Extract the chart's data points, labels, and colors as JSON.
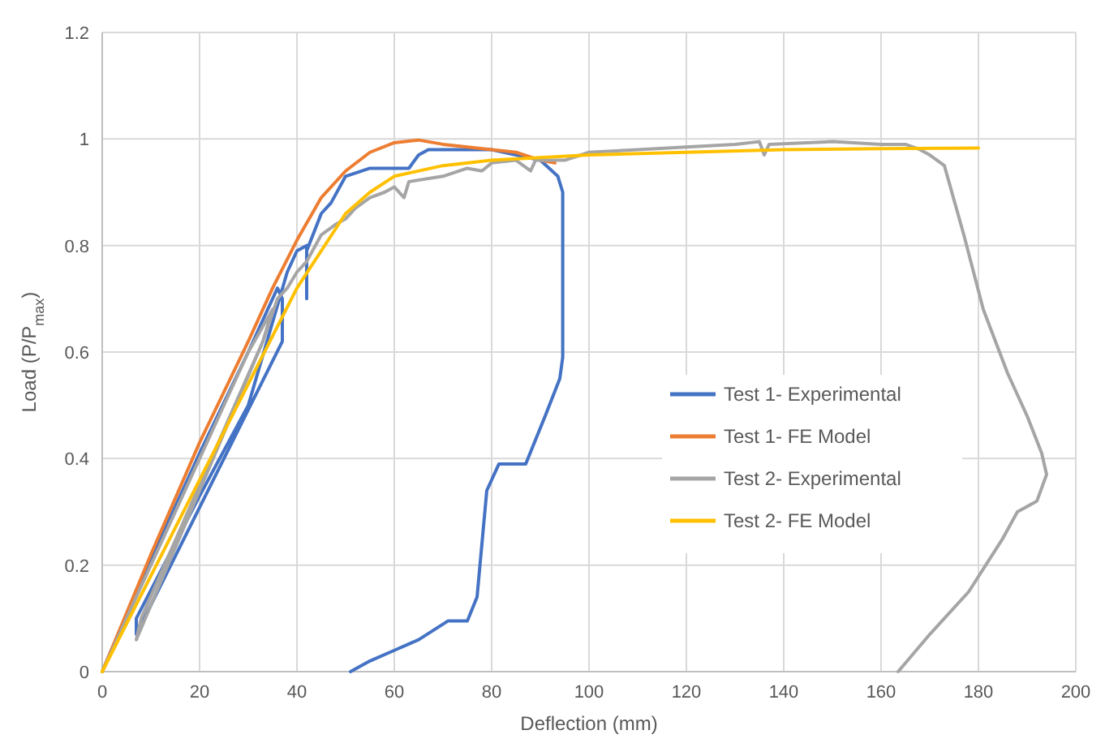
{
  "chart_data": {
    "type": "line",
    "xlabel": "Deflection (mm)",
    "ylabel": "Load (P/P$_{max}$)",
    "xlim": [
      0,
      200
    ],
    "xticks": [
      0,
      20,
      40,
      60,
      80,
      100,
      120,
      140,
      160,
      180,
      200
    ],
    "ylim": [
      0,
      1.2
    ],
    "yticks": [
      0,
      0.2,
      0.4,
      0.6,
      0.8,
      1,
      1.2
    ],
    "grid": true,
    "legend": "right",
    "marker": "none",
    "line_style": "solid",
    "series": [
      {
        "name": "Test 1- Experimental",
        "color": "#4472c4",
        "x": [
          0,
          10,
          20,
          30,
          36,
          37,
          37,
          7,
          7,
          20,
          30,
          38,
          40,
          42,
          42,
          42,
          45,
          47,
          50,
          55,
          63,
          65,
          67,
          80,
          90,
          93.6,
          94.6,
          94.6,
          94,
          91,
          87,
          81.5,
          79,
          77,
          75,
          71,
          65,
          60,
          55,
          51
        ],
        "values": [
          0,
          0.21,
          0.41,
          0.6,
          0.72,
          0.7,
          0.62,
          0.07,
          0.1,
          0.33,
          0.5,
          0.75,
          0.79,
          0.8,
          0.7,
          0.79,
          0.86,
          0.88,
          0.93,
          0.945,
          0.945,
          0.97,
          0.98,
          0.98,
          0.96,
          0.93,
          0.9,
          0.59,
          0.55,
          0.48,
          0.39,
          0.39,
          0.34,
          0.14,
          0.095,
          0.095,
          0.06,
          0.04,
          0.02,
          0
        ]
      },
      {
        "name": "Test 1- FE Model",
        "color": "#ed7d31",
        "x": [
          0,
          10,
          20,
          30,
          35,
          40,
          45,
          50,
          55,
          60,
          65,
          70,
          80,
          85,
          90,
          93
        ],
        "values": [
          0,
          0.22,
          0.43,
          0.62,
          0.72,
          0.81,
          0.89,
          0.94,
          0.975,
          0.993,
          0.998,
          0.99,
          0.98,
          0.975,
          0.96,
          0.955
        ]
      },
      {
        "name": "Test 2- Experimental",
        "color": "#a5a5a5",
        "x": [
          0,
          10,
          20,
          30,
          35,
          33,
          7,
          8,
          20,
          33,
          36,
          38,
          40,
          42,
          45,
          48,
          50,
          52,
          55,
          58,
          60,
          62,
          63,
          70,
          75,
          78,
          80,
          85,
          88,
          89,
          92,
          95,
          100,
          110,
          120,
          130,
          135,
          136,
          137,
          150,
          160,
          165,
          168,
          170,
          173,
          177,
          181,
          186,
          190,
          193,
          194,
          192,
          188,
          185,
          178,
          170,
          163.5
        ],
        "values": [
          0,
          0.2,
          0.4,
          0.6,
          0.68,
          0.62,
          0.06,
          0.1,
          0.35,
          0.62,
          0.7,
          0.72,
          0.75,
          0.77,
          0.82,
          0.84,
          0.85,
          0.87,
          0.89,
          0.9,
          0.91,
          0.89,
          0.92,
          0.93,
          0.945,
          0.94,
          0.955,
          0.96,
          0.94,
          0.96,
          0.96,
          0.96,
          0.975,
          0.98,
          0.985,
          0.99,
          0.995,
          0.97,
          0.99,
          0.995,
          0.99,
          0.99,
          0.98,
          0.97,
          0.95,
          0.82,
          0.68,
          0.56,
          0.48,
          0.41,
          0.37,
          0.32,
          0.3,
          0.25,
          0.15,
          0.07,
          0
        ]
      },
      {
        "name": "Test 2- FE Model",
        "color": "#ffc000",
        "x": [
          0,
          10,
          20,
          30,
          40,
          50,
          55,
          60,
          70,
          80,
          90,
          100,
          120,
          140,
          160,
          180
        ],
        "values": [
          0,
          0.18,
          0.36,
          0.54,
          0.72,
          0.86,
          0.9,
          0.93,
          0.95,
          0.96,
          0.965,
          0.97,
          0.975,
          0.98,
          0.982,
          0.983
        ]
      }
    ]
  }
}
